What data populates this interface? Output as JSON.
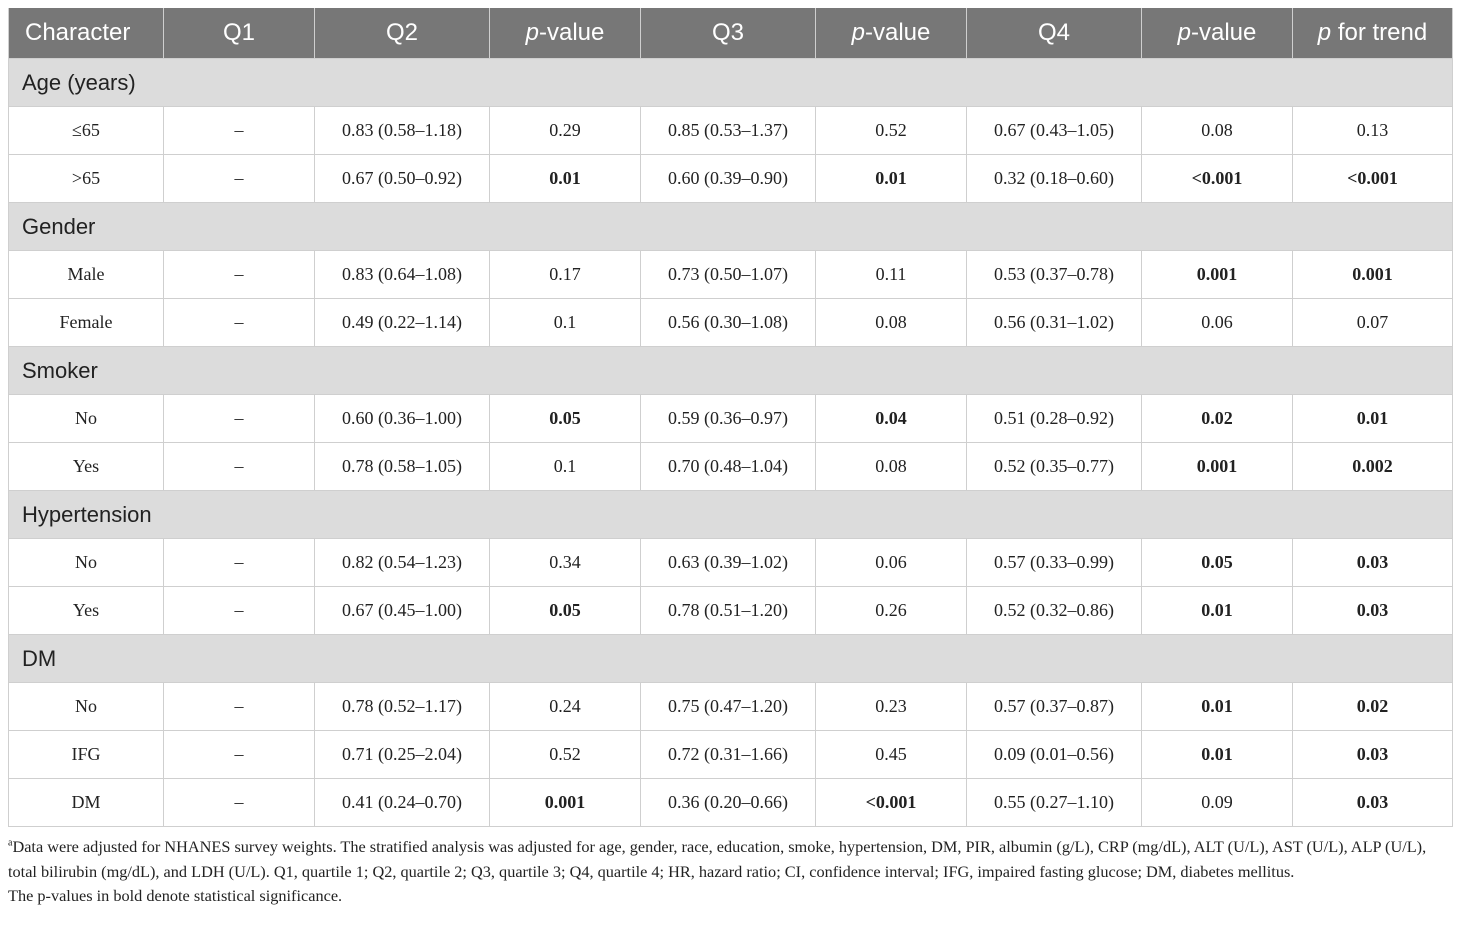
{
  "header": {
    "character": "Character",
    "q1": "Q1",
    "q2": "Q2",
    "p_italic": "p",
    "p_suffix": "-value",
    "q3": "Q3",
    "q4": "Q4",
    "p_trend_suffix": " for trend"
  },
  "groups": [
    {
      "label": "Age (years)",
      "rows": [
        {
          "name": "≤65",
          "q1": "–",
          "q2": "0.83 (0.58–1.18)",
          "p2": "0.29",
          "q3": "0.85 (0.53–1.37)",
          "p3": "0.52",
          "q4": "0.67 (0.43–1.05)",
          "p4": "0.08",
          "trend": "0.13",
          "bold": {
            "p2": false,
            "p3": false,
            "p4": false,
            "trend": false
          }
        },
        {
          "name": ">65",
          "q1": "–",
          "q2": "0.67 (0.50–0.92)",
          "p2": "0.01",
          "q3": "0.60 (0.39–0.90)",
          "p3": "0.01",
          "q4": "0.32 (0.18–0.60)",
          "p4": "<0.001",
          "trend": "<0.001",
          "bold": {
            "p2": true,
            "p3": true,
            "p4": true,
            "trend": true
          }
        }
      ]
    },
    {
      "label": "Gender",
      "rows": [
        {
          "name": "Male",
          "q1": "–",
          "q2": "0.83 (0.64–1.08)",
          "p2": "0.17",
          "q3": "0.73 (0.50–1.07)",
          "p3": "0.11",
          "q4": "0.53 (0.37–0.78)",
          "p4": "0.001",
          "trend": "0.001",
          "bold": {
            "p2": false,
            "p3": false,
            "p4": true,
            "trend": true
          }
        },
        {
          "name": "Female",
          "q1": "–",
          "q2": "0.49 (0.22–1.14)",
          "p2": "0.1",
          "q3": "0.56 (0.30–1.08)",
          "p3": "0.08",
          "q4": "0.56 (0.31–1.02)",
          "p4": "0.06",
          "trend": "0.07",
          "bold": {
            "p2": false,
            "p3": false,
            "p4": false,
            "trend": false
          }
        }
      ]
    },
    {
      "label": "Smoker",
      "rows": [
        {
          "name": "No",
          "q1": "–",
          "q2": "0.60 (0.36–1.00)",
          "p2": "0.05",
          "q3": "0.59 (0.36–0.97)",
          "p3": "0.04",
          "q4": "0.51 (0.28–0.92)",
          "p4": "0.02",
          "trend": "0.01",
          "bold": {
            "p2": true,
            "p3": true,
            "p4": true,
            "trend": true
          }
        },
        {
          "name": "Yes",
          "q1": "–",
          "q2": "0.78 (0.58–1.05)",
          "p2": "0.1",
          "q3": "0.70 (0.48–1.04)",
          "p3": "0.08",
          "q4": "0.52 (0.35–0.77)",
          "p4": "0.001",
          "trend": "0.002",
          "bold": {
            "p2": false,
            "p3": false,
            "p4": true,
            "trend": true
          }
        }
      ]
    },
    {
      "label": "Hypertension",
      "rows": [
        {
          "name": "No",
          "q1": "–",
          "q2": "0.82 (0.54–1.23)",
          "p2": "0.34",
          "q3": "0.63 (0.39–1.02)",
          "p3": "0.06",
          "q4": "0.57 (0.33–0.99)",
          "p4": "0.05",
          "trend": "0.03",
          "bold": {
            "p2": false,
            "p3": false,
            "p4": true,
            "trend": true
          }
        },
        {
          "name": "Yes",
          "q1": "–",
          "q2": "0.67 (0.45–1.00)",
          "p2": "0.05",
          "q3": "0.78 (0.51–1.20)",
          "p3": "0.26",
          "q4": "0.52 (0.32–0.86)",
          "p4": "0.01",
          "trend": "0.03",
          "bold": {
            "p2": true,
            "p3": false,
            "p4": true,
            "trend": true
          }
        }
      ]
    },
    {
      "label": "DM",
      "rows": [
        {
          "name": "No",
          "q1": "–",
          "q2": "0.78 (0.52–1.17)",
          "p2": "0.24",
          "q3": "0.75 (0.47–1.20)",
          "p3": "0.23",
          "q4": "0.57 (0.37–0.87)",
          "p4": "0.01",
          "trend": "0.02",
          "bold": {
            "p2": false,
            "p3": false,
            "p4": true,
            "trend": true
          }
        },
        {
          "name": "IFG",
          "q1": "–",
          "q2": "0.71 (0.25–2.04)",
          "p2": "0.52",
          "q3": "0.72 (0.31–1.66)",
          "p3": "0.45",
          "q4": "0.09 (0.01–0.56)",
          "p4": "0.01",
          "trend": "0.03",
          "bold": {
            "p2": false,
            "p3": false,
            "p4": true,
            "trend": true
          }
        },
        {
          "name": "DM",
          "q1": "–",
          "q2": "0.41 (0.24–0.70)",
          "p2": "0.001",
          "q3": "0.36 (0.20–0.66)",
          "p3": "<0.001",
          "q4": "0.55 (0.27–1.10)",
          "p4": "0.09",
          "trend": "0.03",
          "bold": {
            "p2": true,
            "p3": true,
            "p4": false,
            "trend": true
          }
        }
      ]
    }
  ],
  "footnotes": {
    "sup": "a",
    "note_a": "Data were adjusted for NHANES survey weights. The stratified analysis was adjusted for age, gender, race, education, smoke, hypertension, DM, PIR, albumin (g/L), CRP (mg/dL), ALT (U/L), AST (U/L), ALP (U/L), total bilirubin (mg/dL), and LDH (U/L). Q1, quartile 1; Q2, quartile 2; Q3, quartile 3; Q4, quartile 4; HR, hazard ratio; CI, confidence interval; IFG, impaired fasting glucose; DM, diabetes mellitus.",
    "note_b": "The p-values in bold denote statistical significance."
  }
}
